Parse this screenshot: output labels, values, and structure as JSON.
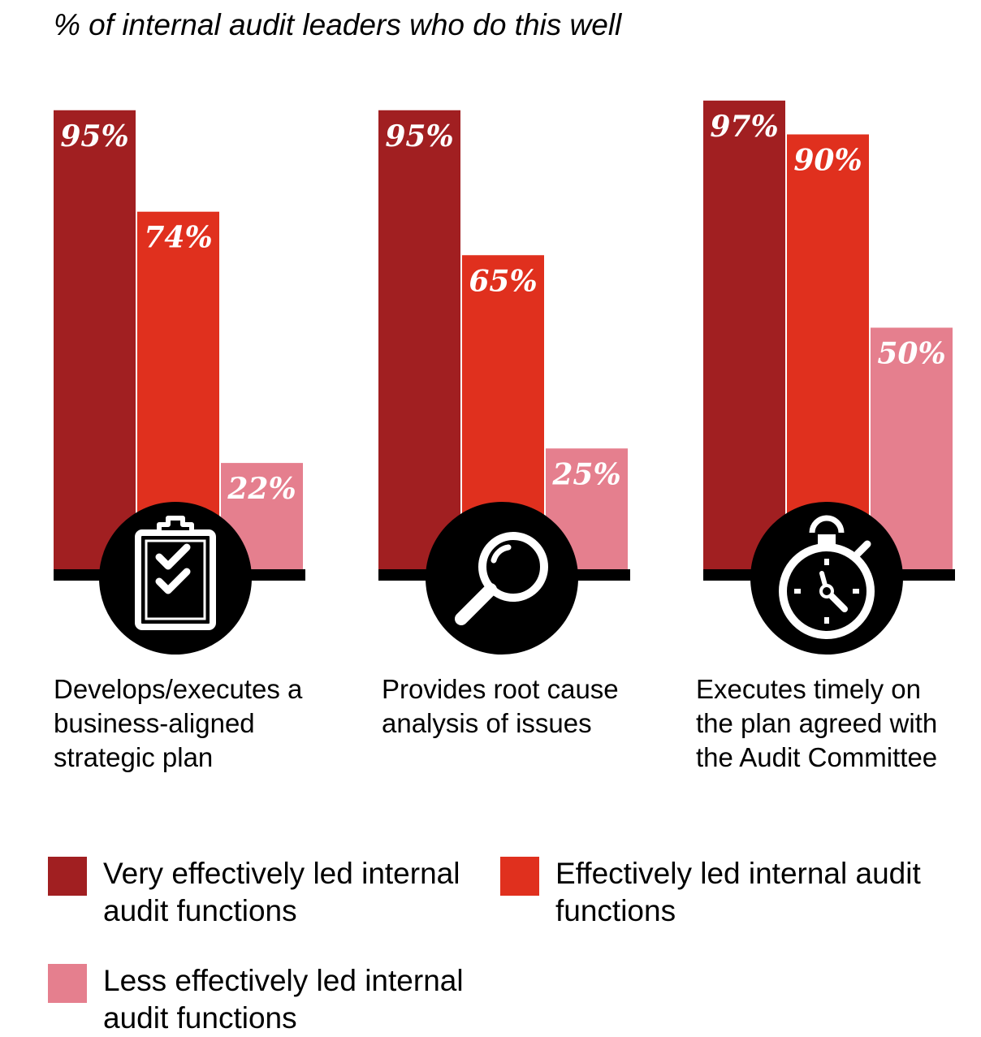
{
  "chart_data": {
    "type": "bar",
    "title": "% of internal audit leaders who do this well",
    "ylim": [
      0,
      100
    ],
    "grid": false,
    "legend_position": "bottom",
    "categories": [
      "Develops/executes a business-aligned strategic plan",
      "Provides root cause analysis of issues",
      "Executes timely on the plan agreed with the Audit Committee"
    ],
    "series": [
      {
        "name": "Very effectively led internal audit functions",
        "color": "#a11f21",
        "values": [
          95,
          95,
          97
        ]
      },
      {
        "name": "Effectively led internal audit functions",
        "color": "#e0301e",
        "values": [
          74,
          65,
          90
        ]
      },
      {
        "name": "Less effectively led internal audit functions",
        "color": "#e57f8e",
        "values": [
          22,
          25,
          50
        ]
      }
    ],
    "value_labels": [
      [
        "95%",
        "74%",
        "22%"
      ],
      [
        "95%",
        "65%",
        "25%"
      ],
      [
        "97%",
        "90%",
        "50%"
      ]
    ],
    "icons": [
      "clipboard-check-icon",
      "magnifier-icon",
      "stopwatch-icon"
    ]
  }
}
